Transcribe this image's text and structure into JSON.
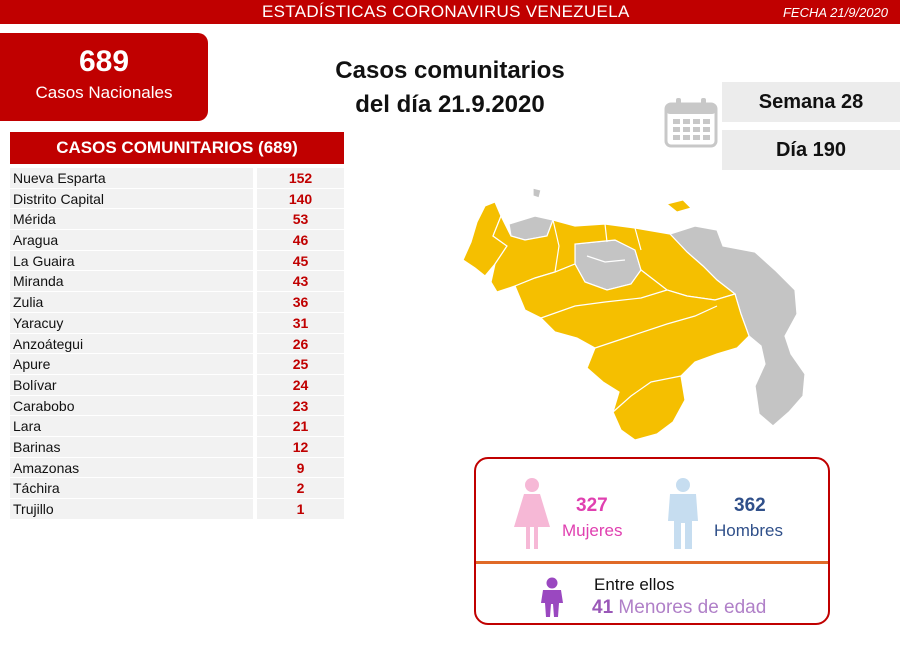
{
  "header": {
    "title": "ESTADÍSTICAS CORONAVIRUS VENEZUELA",
    "date": "FECHA 21/9/2020"
  },
  "national": {
    "count": "689",
    "label": "Casos Nacionales"
  },
  "title": {
    "line1": "Casos comunitarios",
    "line2": "del día 21.9.2020"
  },
  "calendar": {
    "icon": "calendar-icon",
    "week": "Semana 28",
    "day": "Día 190"
  },
  "table": {
    "header": "CASOS COMUNITARIOS (689)",
    "rows": [
      {
        "name": "Nueva Esparta",
        "value": "152"
      },
      {
        "name": "Distrito Capital",
        "value": "140"
      },
      {
        "name": "Mérida",
        "value": "53"
      },
      {
        "name": "Aragua",
        "value": "46"
      },
      {
        "name": "La Guaira",
        "value": "45"
      },
      {
        "name": "Miranda",
        "value": "43"
      },
      {
        "name": "Zulia",
        "value": "36"
      },
      {
        "name": "Yaracuy",
        "value": "31"
      },
      {
        "name": "Anzoátegui",
        "value": "26"
      },
      {
        "name": "Apure",
        "value": "25"
      },
      {
        "name": "Bolívar",
        "value": "24"
      },
      {
        "name": "Carabobo",
        "value": "23"
      },
      {
        "name": "Lara",
        "value": "21"
      },
      {
        "name": "Barinas",
        "value": "12"
      },
      {
        "name": "Amazonas",
        "value": "9"
      },
      {
        "name": "Táchira",
        "value": "2"
      },
      {
        "name": "Trujillo",
        "value": "1"
      }
    ]
  },
  "map": {
    "highlight_color": "#f5bf00",
    "neutral_color": "#c4c4c4"
  },
  "gender": {
    "women_count": "327",
    "women_label": "Mujeres",
    "men_count": "362",
    "men_label": "Hombres",
    "among_label": "Entre ellos",
    "minors_count": "41",
    "minors_label": "Menores de edad"
  },
  "colors": {
    "brand_red": "#c00000",
    "women": "#e040b0",
    "men": "#30508a",
    "minors": "#9a58b8"
  }
}
